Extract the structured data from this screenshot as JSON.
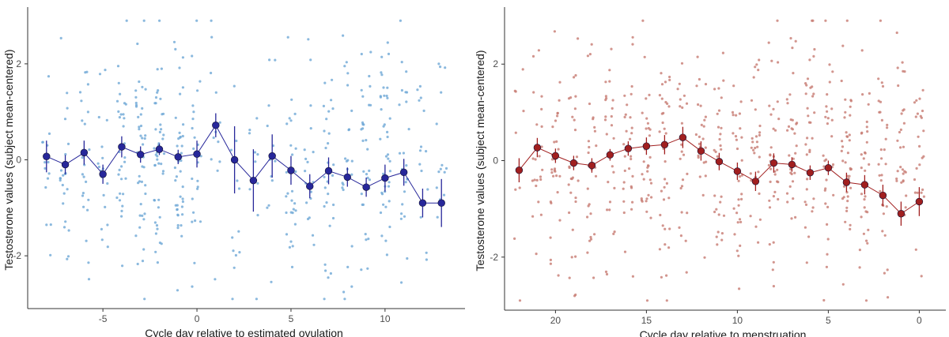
{
  "chart_data": [
    {
      "type": "scatter",
      "xlabel": "Cycle day relative to estimated ovulation",
      "ylabel": "Testosterone values (subject mean-centered)",
      "xlim": [
        -9,
        14
      ],
      "ylim": [
        -3.1,
        3.1
      ],
      "xticks": [
        -5,
        0,
        5,
        10
      ],
      "yticks": [
        -2,
        0,
        2
      ],
      "x_reversed": false,
      "grid": false,
      "colors": {
        "means": "#27279a",
        "points": "#6ea8d6"
      },
      "series": [
        {
          "kind": "mean_with_error",
          "x": [
            -8,
            -7,
            -6,
            -5,
            -4,
            -3,
            -2,
            -1,
            0,
            1,
            2,
            3,
            4,
            5,
            6,
            7,
            8,
            9,
            10,
            11,
            12,
            13
          ],
          "y": [
            0.07,
            -0.1,
            0.15,
            -0.3,
            0.27,
            0.11,
            0.22,
            0.06,
            0.12,
            0.72,
            0.0,
            -0.43,
            0.08,
            -0.22,
            -0.55,
            -0.23,
            -0.36,
            -0.57,
            -0.38,
            -0.26,
            -0.9,
            -0.9
          ],
          "err": [
            0.33,
            0.2,
            0.25,
            0.2,
            0.22,
            0.17,
            0.12,
            0.15,
            0.28,
            0.25,
            0.7,
            0.65,
            0.45,
            0.3,
            0.25,
            0.28,
            0.2,
            0.2,
            0.28,
            0.28,
            0.3,
            0.5
          ]
        },
        {
          "kind": "raw_points",
          "x_range": [
            -8,
            13
          ],
          "n_per_day": [
            14,
            22,
            22,
            18,
            30,
            42,
            44,
            40,
            24,
            12,
            12,
            10,
            12,
            28,
            18,
            28,
            24,
            30,
            40,
            24,
            14,
            14
          ],
          "y_spread": 2.9
        }
      ]
    },
    {
      "type": "scatter",
      "xlabel": "Cycle day relative to menstruation",
      "ylabel": "Testosterone values (subject mean-centered)",
      "xlim": [
        22.8,
        -1.2
      ],
      "ylim": [
        -3.1,
        3.1
      ],
      "xticks": [
        20,
        15,
        10,
        5,
        0
      ],
      "yticks": [
        -2,
        0,
        2
      ],
      "x_reversed": true,
      "grid": false,
      "colors": {
        "means": "#a11f1f",
        "points": "#c77a72"
      },
      "series": [
        {
          "kind": "mean_with_error",
          "x": [
            22,
            21,
            20,
            19,
            18,
            17,
            16,
            15,
            14,
            13,
            12,
            11,
            10,
            9,
            8,
            7,
            6,
            5,
            4,
            3,
            2,
            1,
            0
          ],
          "y": [
            -0.2,
            0.27,
            0.1,
            -0.05,
            -0.1,
            0.12,
            0.25,
            0.3,
            0.33,
            0.48,
            0.2,
            -0.02,
            -0.22,
            -0.43,
            -0.05,
            -0.08,
            -0.25,
            -0.15,
            -0.45,
            -0.5,
            -0.72,
            -1.1,
            -0.85
          ],
          "err": [
            0.25,
            0.2,
            0.15,
            0.15,
            0.15,
            0.12,
            0.15,
            0.18,
            0.2,
            0.22,
            0.2,
            0.18,
            0.18,
            0.2,
            0.2,
            0.15,
            0.15,
            0.15,
            0.2,
            0.2,
            0.22,
            0.25,
            0.3
          ]
        },
        {
          "kind": "raw_points",
          "x_range": [
            0,
            22
          ],
          "n_per_day": [
            24,
            30,
            30,
            32,
            40,
            30,
            34,
            32,
            34,
            30,
            30,
            28,
            24,
            24,
            34,
            32,
            30,
            26,
            28,
            30,
            30,
            22,
            10
          ],
          "y_spread": 2.9
        }
      ]
    }
  ]
}
